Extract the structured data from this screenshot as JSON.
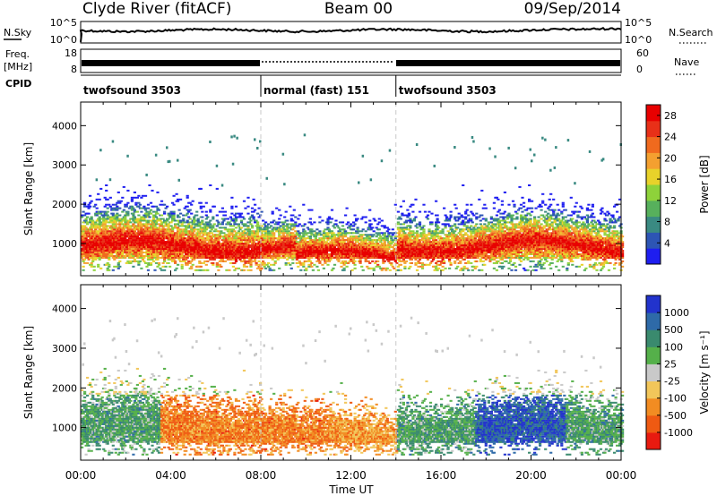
{
  "header": {
    "station": "Clyde River (fitACF)",
    "beam": "Beam 00",
    "date": "09/Sep/2014"
  },
  "strip_labels": {
    "nsky": "N.Sky",
    "freq_top": "Freq.",
    "freq_unit": "[MHz]",
    "cpid": "CPID",
    "nsearch": "N.Search",
    "nave": "Nave",
    "sky_tick_hi": "10^5",
    "sky_tick_lo": "10^0",
    "freq_tick_hi": "18",
    "freq_tick_lo": "8",
    "nave_tick_hi": "60",
    "nave_tick_lo": "0"
  },
  "cpid_segments": [
    {
      "label": "twofsound 3503",
      "start": 0,
      "end": 8
    },
    {
      "label": "normal (fast) 151",
      "start": 8,
      "end": 14
    },
    {
      "label": "twofsound 3503",
      "start": 14,
      "end": 24
    }
  ],
  "chart_data": [
    {
      "type": "heatmap",
      "name": "power",
      "ylabel": "Slant Range [km]",
      "ylim": [
        180,
        4600
      ],
      "yticks": [
        "1000",
        "2000",
        "3000",
        "4000"
      ],
      "xlim": [
        0,
        24
      ],
      "colorbar": {
        "label": "Power [dB]",
        "ticks": [
          "4",
          "8",
          "12",
          "16",
          "20",
          "24",
          "28"
        ],
        "colors": [
          "#1e1ef0",
          "#2d55b4",
          "#3a8a82",
          "#57b05c",
          "#8ed23a",
          "#e8d22a",
          "#f4a030",
          "#f06a1e",
          "#e83018",
          "#e80000"
        ]
      }
    },
    {
      "type": "heatmap",
      "name": "velocity",
      "ylabel": "Slant Range [km]",
      "ylim": [
        180,
        4600
      ],
      "yticks": [
        "1000",
        "2000",
        "3000",
        "4000"
      ],
      "xlim": [
        0,
        24
      ],
      "xlabel": "Time UT",
      "xticks": [
        "00:00",
        "04:00",
        "08:00",
        "12:00",
        "16:00",
        "20:00",
        "00:00"
      ],
      "colorbar": {
        "label": "Velocity [m s⁻¹]",
        "ticks": [
          "1000",
          "500",
          "100",
          "25",
          "-25",
          "-100",
          "-500",
          "-1000"
        ],
        "colors": [
          "#2233cc",
          "#2e6aa8",
          "#3a8a6e",
          "#55b04a",
          "#c9c9c9",
          "#f2c65a",
          "#f28c22",
          "#ef5a12",
          "#e81a10"
        ]
      }
    }
  ]
}
